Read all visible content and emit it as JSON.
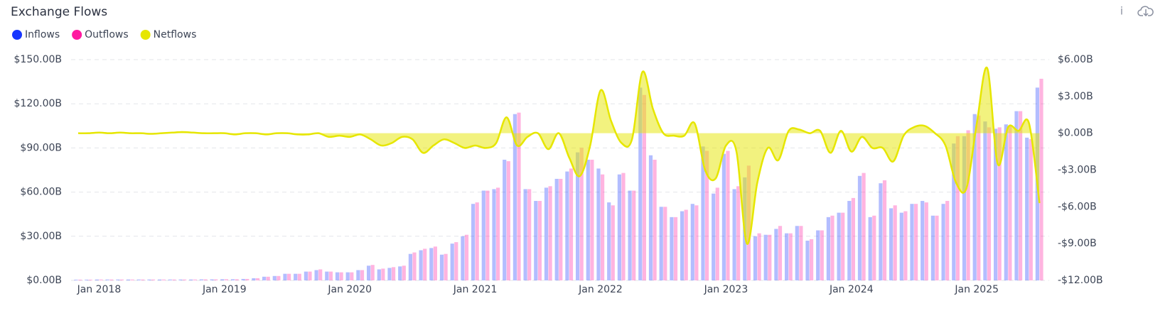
{
  "chart_data": {
    "type": "bar_line",
    "title": "Exchange Flows",
    "categories": [
      null,
      null,
      "Jan 2018",
      null,
      null,
      null,
      null,
      null,
      null,
      null,
      null,
      null,
      null,
      null,
      "Jan 2019",
      null,
      null,
      null,
      null,
      null,
      null,
      null,
      null,
      null,
      null,
      null,
      "Jan 2020",
      null,
      null,
      null,
      null,
      null,
      null,
      null,
      null,
      null,
      null,
      null,
      "Jan 2021",
      null,
      null,
      null,
      null,
      null,
      null,
      null,
      null,
      null,
      null,
      null,
      "Jan 2022",
      null,
      null,
      null,
      null,
      null,
      null,
      null,
      null,
      null,
      null,
      null,
      "Jan 2023",
      null,
      null,
      null,
      null,
      null,
      null,
      null,
      null,
      null,
      null,
      null,
      "Jan 2024",
      null,
      null,
      null,
      null,
      null,
      null,
      null,
      null,
      null,
      null,
      null,
      "Jan 2025",
      null,
      null,
      null,
      null,
      null,
      null
    ],
    "series": [
      {
        "name": "Inflows",
        "color": "#1736ff",
        "kind": "bar",
        "axis": "y",
        "values": [
          0.5,
          0.5,
          0.6,
          0.6,
          0.6,
          0.6,
          0.6,
          0.6,
          0.6,
          0.6,
          0.6,
          0.6,
          0.7,
          0.7,
          0.8,
          0.8,
          1,
          1.5,
          2.5,
          3,
          4.5,
          4.5,
          6,
          7,
          6,
          5.5,
          5.5,
          7,
          10,
          7.5,
          8.5,
          9.5,
          18,
          20.5,
          22,
          17.5,
          25,
          30,
          52,
          61,
          62,
          82,
          113,
          62,
          54,
          63,
          69,
          74,
          87,
          82,
          76,
          53,
          72,
          61,
          131,
          85,
          50,
          43,
          47,
          52,
          91,
          59,
          86,
          62,
          70,
          30,
          31,
          35,
          32,
          37,
          27,
          34,
          43,
          46,
          54,
          71,
          43,
          66,
          49,
          46,
          52,
          54,
          44,
          52,
          93,
          98,
          113,
          108,
          103,
          106,
          115,
          97,
          131
        ]
      },
      {
        "name": "Outflows",
        "color": "#ff1aa0",
        "kind": "bar",
        "axis": "y",
        "values": [
          0.5,
          0.5,
          0.6,
          0.6,
          0.6,
          0.6,
          0.6,
          0.6,
          0.6,
          0.6,
          0.6,
          0.6,
          0.7,
          0.7,
          0.8,
          0.8,
          1,
          1.5,
          2.5,
          3,
          4.5,
          4.5,
          6,
          7.5,
          6,
          5.5,
          5.5,
          7,
          10.5,
          8,
          9,
          10,
          19,
          21.5,
          23,
          18,
          26,
          31,
          53,
          61,
          63,
          81,
          114,
          62,
          54,
          64,
          69,
          76,
          90,
          82,
          72,
          51,
          73,
          61,
          126,
          82,
          50,
          43,
          48,
          51,
          88,
          63,
          88,
          64,
          78,
          32,
          31,
          37,
          32,
          37,
          28,
          34,
          44,
          46,
          56,
          73,
          44,
          68,
          51,
          47,
          52,
          53,
          44,
          54,
          98,
          102,
          112,
          104,
          104,
          105,
          115,
          96,
          137
        ]
      },
      {
        "name": "Netflows",
        "color": "#e6e600",
        "kind": "line",
        "axis": "y2",
        "values": [
          0,
          0,
          0.05,
          0,
          0.05,
          0,
          0,
          -0.05,
          0,
          0.05,
          0.1,
          0.05,
          0,
          0,
          0,
          -0.1,
          0,
          0,
          -0.1,
          0,
          0,
          -0.1,
          -0.1,
          0,
          -0.3,
          -0.2,
          -0.3,
          -0.1,
          -0.5,
          -1,
          -0.8,
          -0.3,
          -0.5,
          -1.6,
          -1,
          -0.5,
          -0.8,
          -1.2,
          -1,
          -1.2,
          -0.8,
          1.3,
          -1,
          -0.3,
          0,
          -1.3,
          0,
          -2,
          -3.5,
          -1,
          3.5,
          1,
          -0.8,
          -0.5,
          5,
          2,
          0,
          -0.2,
          -0.2,
          0.8,
          -3,
          -3.7,
          -1,
          -1.5,
          -9,
          -4,
          -1.2,
          -2.2,
          0.2,
          0.3,
          0,
          0.2,
          -1.6,
          0.2,
          -1.5,
          -0.3,
          -1.2,
          -1.2,
          -2.3,
          -0.2,
          0.5,
          0.6,
          0,
          -1,
          -4,
          -4.5,
          0.8,
          5.3,
          -2.5,
          0.5,
          0.2,
          0.8,
          -5.7
        ]
      }
    ],
    "ylim": [
      0,
      150
    ],
    "yticks": [
      {
        "value": 0,
        "label": "$0.00B"
      },
      {
        "value": 30,
        "label": "$30.00B"
      },
      {
        "value": 60,
        "label": "$60.00B"
      },
      {
        "value": 90,
        "label": "$90.00B"
      },
      {
        "value": 120,
        "label": "$120.00B"
      },
      {
        "value": 150,
        "label": "$150.00B"
      }
    ],
    "y2lim": [
      -12,
      6
    ],
    "y2ticks": [
      {
        "value": -12,
        "label": "-$12.00B"
      },
      {
        "value": -9,
        "label": "-$9.00B"
      },
      {
        "value": -6,
        "label": "-$6.00B"
      },
      {
        "value": -3,
        "label": "-$3.00B"
      },
      {
        "value": 0,
        "label": "$0.00B"
      },
      {
        "value": 3,
        "label": "$3.00B"
      },
      {
        "value": 6,
        "label": "$6.00B"
      }
    ],
    "grid": true,
    "legend": "top-left"
  }
}
